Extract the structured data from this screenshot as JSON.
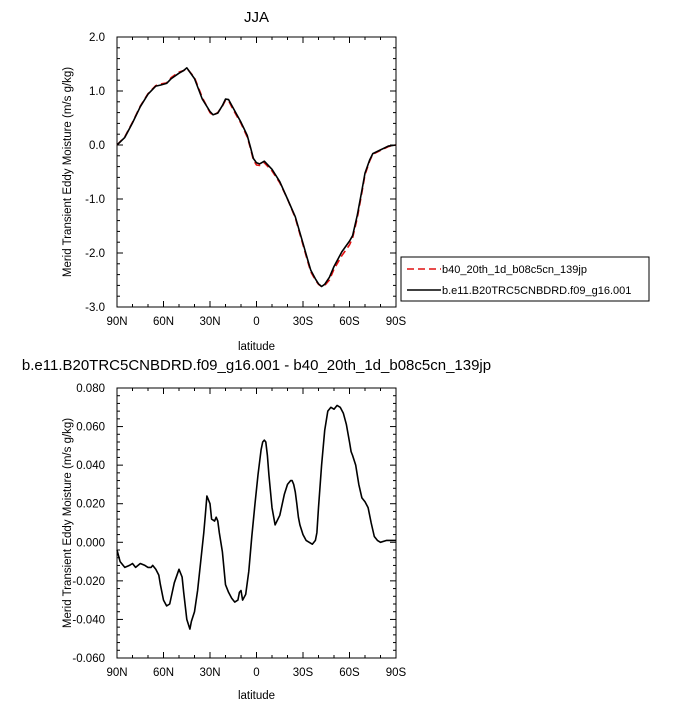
{
  "chart_data": [
    {
      "type": "line",
      "title": "JJA",
      "xlabel": "latitude",
      "ylabel": "Merid Transient Eddy Moisture (m/s g/kg)",
      "xlim": [
        90,
        -90
      ],
      "ylim": [
        -3.0,
        2.0
      ],
      "x_ticks": [
        90,
        60,
        30,
        0,
        -30,
        -60,
        -90
      ],
      "x_tick_labels": [
        "90N",
        "60N",
        "30N",
        "0",
        "30S",
        "60S",
        "90S"
      ],
      "y_ticks": [
        -3.0,
        -2.0,
        -1.0,
        0.0,
        1.0,
        2.0
      ],
      "y_tick_labels": [
        "-3.0",
        "-2.0",
        "-1.0",
        "0.0",
        "1.0",
        "2.0"
      ],
      "grid": false,
      "legend_position": "outside-right",
      "series": [
        {
          "name": "b40_20th_1d_b08c5cn_139jp",
          "color": "#e01010",
          "dash": "dashed",
          "x": [
            90,
            85,
            80,
            75,
            70,
            65,
            62,
            58,
            55,
            50,
            47,
            45,
            40,
            35,
            30,
            28,
            25,
            22,
            20,
            18,
            15,
            10,
            6,
            4,
            2,
            0,
            -2,
            -5,
            -10,
            -15,
            -20,
            -25,
            -30,
            -33,
            -35,
            -38,
            -40,
            -42,
            -44,
            -47,
            -50,
            -55,
            -60,
            -62,
            -65,
            -68,
            -70,
            -73,
            -75,
            -80,
            -85,
            -90
          ],
          "y": [
            0.0,
            0.15,
            0.42,
            0.72,
            0.95,
            1.1,
            1.13,
            1.15,
            1.25,
            1.35,
            1.38,
            1.42,
            1.25,
            0.88,
            0.6,
            0.55,
            0.6,
            0.72,
            0.83,
            0.82,
            0.65,
            0.4,
            0.15,
            -0.05,
            -0.28,
            -0.37,
            -0.38,
            -0.33,
            -0.48,
            -0.7,
            -1.0,
            -1.35,
            -1.85,
            -2.15,
            -2.35,
            -2.5,
            -2.58,
            -2.62,
            -2.6,
            -2.5,
            -2.3,
            -2.05,
            -1.85,
            -1.72,
            -1.35,
            -0.88,
            -0.55,
            -0.3,
            -0.17,
            -0.1,
            -0.03,
            0.0
          ]
        },
        {
          "name": "b.e11.B20TRC5CNBDRD.f09_g16.001",
          "color": "#000000",
          "dash": "solid",
          "x": [
            90,
            85,
            80,
            75,
            70,
            65,
            62,
            58,
            55,
            50,
            47,
            45,
            40,
            35,
            30,
            28,
            25,
            22,
            20,
            18,
            15,
            10,
            6,
            4,
            2,
            0,
            -2,
            -5,
            -10,
            -15,
            -20,
            -25,
            -30,
            -33,
            -35,
            -38,
            -40,
            -42,
            -44,
            -47,
            -50,
            -55,
            -60,
            -62,
            -65,
            -68,
            -70,
            -73,
            -75,
            -80,
            -85,
            -90
          ],
          "y": [
            0.0,
            0.14,
            0.41,
            0.71,
            0.94,
            1.09,
            1.11,
            1.14,
            1.23,
            1.33,
            1.38,
            1.43,
            1.23,
            0.85,
            0.62,
            0.56,
            0.59,
            0.73,
            0.85,
            0.84,
            0.68,
            0.42,
            0.18,
            -0.03,
            -0.25,
            -0.33,
            -0.35,
            -0.3,
            -0.45,
            -0.68,
            -1.0,
            -1.33,
            -1.82,
            -2.12,
            -2.32,
            -2.48,
            -2.57,
            -2.62,
            -2.58,
            -2.45,
            -2.25,
            -1.98,
            -1.78,
            -1.68,
            -1.3,
            -0.84,
            -0.52,
            -0.28,
            -0.16,
            -0.09,
            -0.02,
            0.0
          ]
        }
      ]
    },
    {
      "type": "line",
      "title": "b.e11.B20TRC5CNBDRD.f09_g16.001 - b40_20th_1d_b08c5cn_139jp",
      "xlabel": "latitude",
      "ylabel": "Merid Transient Eddy Moisture (m/s g/kg)",
      "xlim": [
        90,
        -90
      ],
      "ylim": [
        -0.06,
        0.08
      ],
      "x_ticks": [
        90,
        60,
        30,
        0,
        -30,
        -60,
        -90
      ],
      "x_tick_labels": [
        "90N",
        "60N",
        "30N",
        "0",
        "30S",
        "60S",
        "90S"
      ],
      "y_ticks": [
        -0.06,
        -0.04,
        -0.02,
        0.0,
        0.02,
        0.04,
        0.06,
        0.08
      ],
      "y_tick_labels": [
        "-0.060",
        "-0.040",
        "-0.020",
        "0.000",
        "0.020",
        "0.040",
        "0.060",
        "0.080"
      ],
      "grid": false,
      "series": [
        {
          "color": "#000000",
          "dash": "solid",
          "x": [
            90,
            88,
            85,
            82,
            80,
            78,
            75,
            72,
            70,
            68,
            67,
            65,
            63,
            62,
            60,
            58,
            56,
            53,
            50,
            48,
            47,
            45,
            43,
            42,
            40,
            38,
            36,
            34,
            33,
            32,
            30,
            29,
            27,
            26,
            25,
            24,
            22,
            20,
            18,
            16,
            14,
            12,
            11,
            10,
            9,
            7,
            5,
            3,
            1,
            -1,
            -3,
            -4,
            -5,
            -6,
            -7,
            -8,
            -10,
            -12,
            -15,
            -18,
            -20,
            -22,
            -23,
            -24,
            -25,
            -26,
            -27,
            -28,
            -30,
            -32,
            -34,
            -36,
            -38,
            -39,
            -40,
            -42,
            -44,
            -46,
            -48,
            -50,
            -52,
            -54,
            -56,
            -58,
            -60,
            -61,
            -62,
            -64,
            -66,
            -68,
            -70,
            -72,
            -74,
            -76,
            -78,
            -80,
            -84,
            -88,
            -90
          ],
          "y": [
            -0.004,
            -0.01,
            -0.013,
            -0.012,
            -0.011,
            -0.013,
            -0.011,
            -0.012,
            -0.013,
            -0.013,
            -0.012,
            -0.014,
            -0.017,
            -0.022,
            -0.03,
            -0.033,
            -0.032,
            -0.021,
            -0.014,
            -0.018,
            -0.026,
            -0.04,
            -0.045,
            -0.041,
            -0.036,
            -0.025,
            -0.01,
            0.005,
            0.014,
            0.024,
            0.02,
            0.012,
            0.011,
            0.013,
            0.011,
            0.005,
            -0.005,
            -0.022,
            -0.026,
            -0.029,
            -0.031,
            -0.03,
            -0.026,
            -0.025,
            -0.03,
            -0.027,
            -0.015,
            0.003,
            0.02,
            0.035,
            0.048,
            0.052,
            0.053,
            0.052,
            0.045,
            0.035,
            0.018,
            0.009,
            0.014,
            0.025,
            0.03,
            0.032,
            0.032,
            0.03,
            0.026,
            0.02,
            0.013,
            0.009,
            0.004,
            0.001,
            0.0,
            -0.001,
            0.001,
            0.005,
            0.018,
            0.04,
            0.058,
            0.068,
            0.07,
            0.069,
            0.071,
            0.07,
            0.067,
            0.061,
            0.052,
            0.047,
            0.045,
            0.04,
            0.03,
            0.023,
            0.021,
            0.018,
            0.01,
            0.003,
            0.001,
            0.0,
            0.001,
            0.001,
            0.001
          ]
        }
      ]
    }
  ]
}
